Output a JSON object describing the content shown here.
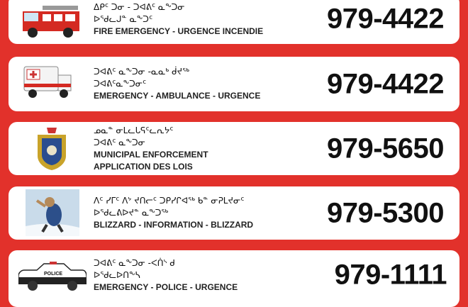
{
  "colors": {
    "background": "#e2312b",
    "card": "#ffffff"
  },
  "entries": [
    {
      "icon": "fire-truck-icon",
      "syllabics": [
        "ᐃᑭᑦ ᑐᓂ - ᑐᐊᕕᑦ ᓇᖕᑐᓂ",
        "ᐅᖁᓚᒍᓐ ᓇᖕᑐᑦ"
      ],
      "label": [
        "FIRE EMERGENCY - URGENCE INCENDIE"
      ],
      "number": "979-4422"
    },
    {
      "icon": "ambulance-icon",
      "syllabics": [
        "ᑐᐊᕕᑦ ᓇᖕᑐᓂ -ᓇᓇᒃ ᑰᔪᖅ",
        "ᑐᐊᕕᑦᓇᖕᑐᓂᑦ"
      ],
      "label": [
        "EMERGENCY - AMBULANCE - URGENCE"
      ],
      "number": "979-4422"
    },
    {
      "icon": "municipal-badge-icon",
      "syllabics": [
        "ᓄᓇᓐ ᓂᒪᓚᒐᕋᑦᓚᕆᔭᑦ",
        "ᑐᐊᕕᑦ ᓇᖕᑐᓂ"
      ],
      "label": [
        "MUNICIPAL ENFORCEMENT",
        "APPLICATION DES LOIS"
      ],
      "number": "979-5650"
    },
    {
      "icon": "blizzard-icon",
      "syllabics": [
        "ᐱᑦ ᓯᒥᑦ ᐱᔾ ᔪᑎᓕᑦ ᑐᑭᓯᒋᐊᖅ ᑲᓐ ᓂᕈᒪᔪᓂᑦ",
        "ᐅᖁᓚᕕᐅᔪᓐ ᓇᖕᑐᖅ"
      ],
      "label": [
        "BLIZZARD - INFORMATION - BLIZZARD"
      ],
      "number": "979-5300"
    },
    {
      "icon": "police-car-icon",
      "syllabics": [
        "ᑐᐊᕕᑦ ᓇᖕᑐᓂ -ᐸᑏᔅ ᑯ",
        "ᐅᖁᓚᐅᑎᖕᓴ"
      ],
      "label": [
        "EMERGENCY - POLICE - URGENCE"
      ],
      "number": "979-1111",
      "car_text": "POLICE"
    }
  ]
}
